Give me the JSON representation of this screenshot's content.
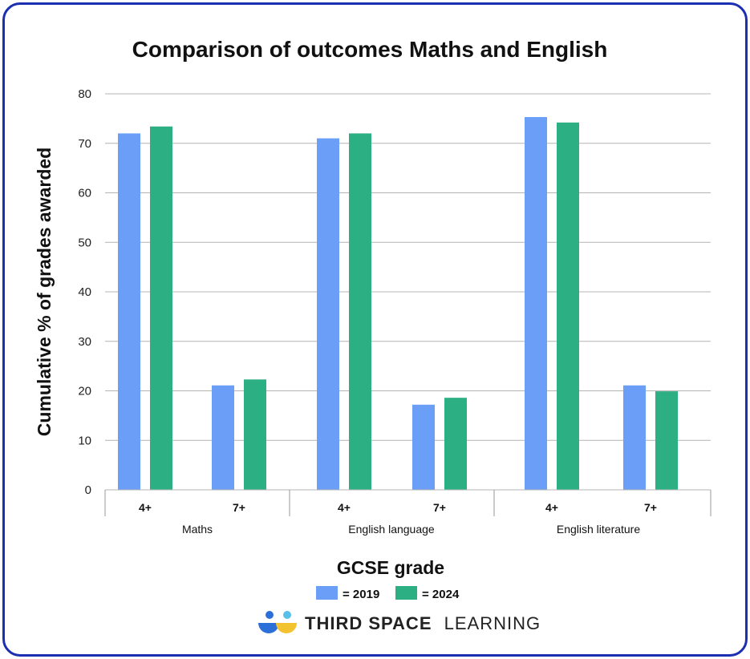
{
  "chart_data": {
    "type": "bar",
    "title": "Comparison of outcomes Maths and English",
    "xlabel": "GCSE grade",
    "ylabel": "Cumulative % of grades awarded",
    "ylim": [
      0,
      80
    ],
    "yticks": [
      0,
      10,
      20,
      30,
      40,
      50,
      60,
      70,
      80
    ],
    "grid": true,
    "groups": [
      {
        "label": "Maths",
        "categories": [
          "4+",
          "7+"
        ]
      },
      {
        "label": "English language",
        "categories": [
          "4+",
          "7+"
        ]
      },
      {
        "label": "English literature",
        "categories": [
          "4+",
          "7+"
        ]
      }
    ],
    "categories": [
      "Maths 4+",
      "Maths 7+",
      "English language 4+",
      "English language 7+",
      "English literature 4+",
      "English literature 7+"
    ],
    "series": [
      {
        "name": "= 2019",
        "color": "#6a9ef7",
        "values": [
          72.0,
          21.1,
          71.0,
          17.2,
          75.3,
          21.1
        ]
      },
      {
        "name": "= 2024",
        "color": "#2daf84",
        "values": [
          73.4,
          22.3,
          72.0,
          18.6,
          74.2,
          19.9
        ]
      }
    ],
    "legend_position": "bottom"
  },
  "branding": {
    "logo_text_bold": "THIRD SPACE",
    "logo_text_light": "LEARNING",
    "logo_colors": [
      "#2d6fd8",
      "#f2c230",
      "#58c0e8"
    ]
  },
  "frame_color": "#1c2fb0",
  "grid_color": "#b4b4b4"
}
